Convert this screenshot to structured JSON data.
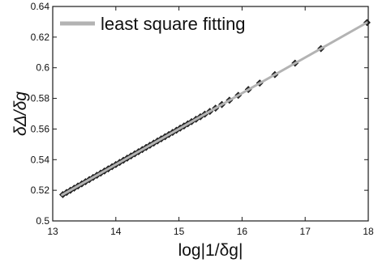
{
  "chart_data": {
    "type": "scatter",
    "title": "",
    "xlabel": "log|1/δg|",
    "ylabel": "δΔ/δg",
    "xlim": [
      13,
      18
    ],
    "ylim": [
      0.5,
      0.64
    ],
    "xticks": [
      13,
      14,
      15,
      16,
      17,
      18
    ],
    "yticks": [
      0.5,
      0.52,
      0.54,
      0.56,
      0.58,
      0.6,
      0.62,
      0.64
    ],
    "ytick_labels": [
      "0.5",
      "0.52",
      "0.54",
      "0.56",
      "0.58",
      "0.6",
      "0.62",
      "0.64"
    ],
    "grid": false,
    "legend": {
      "position": "top-left",
      "entries": [
        "least square fitting"
      ]
    },
    "series": [
      {
        "name": "least square fitting",
        "kind": "line",
        "color": "#b3b3b3",
        "x": [
          13.15,
          17.98
        ],
        "y": [
          0.517,
          0.6295
        ]
      },
      {
        "kind": "markers",
        "marker": "diamond",
        "color": "#2a2a2a",
        "x": [
          13.16,
          13.22,
          13.28,
          13.34,
          13.4,
          13.46,
          13.52,
          13.58,
          13.64,
          13.7,
          13.76,
          13.82,
          13.88,
          13.94,
          14.0,
          14.06,
          14.12,
          14.18,
          14.24,
          14.3,
          14.36,
          14.42,
          14.48,
          14.54,
          14.6,
          14.66,
          14.72,
          14.78,
          14.84,
          14.9,
          14.96,
          15.02,
          15.08,
          15.14,
          15.2,
          15.27,
          15.34,
          15.41,
          15.49,
          15.58,
          15.68,
          15.8,
          15.94,
          16.1,
          16.28,
          16.52,
          16.84,
          17.25,
          17.98
        ],
        "y": [
          0.5172,
          0.5186,
          0.52,
          0.5214,
          0.5228,
          0.5242,
          0.5256,
          0.527,
          0.5284,
          0.5298,
          0.5312,
          0.5326,
          0.534,
          0.5354,
          0.5368,
          0.5382,
          0.5396,
          0.541,
          0.5424,
          0.5438,
          0.5452,
          0.5466,
          0.548,
          0.5494,
          0.5508,
          0.5522,
          0.5536,
          0.555,
          0.5564,
          0.5578,
          0.5592,
          0.5606,
          0.562,
          0.5634,
          0.5648,
          0.5664,
          0.568,
          0.5697,
          0.5715,
          0.5736,
          0.576,
          0.5788,
          0.582,
          0.5858,
          0.59,
          0.5955,
          0.603,
          0.6125,
          0.6295
        ]
      }
    ]
  }
}
